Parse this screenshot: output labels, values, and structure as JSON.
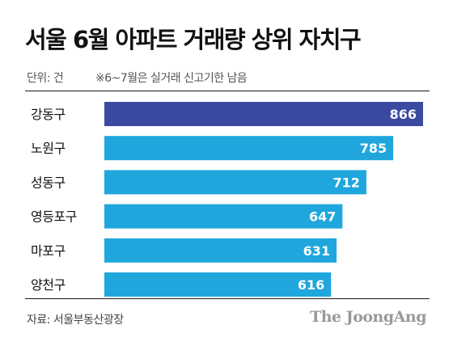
{
  "title": "서울 6월 아파트 거래량 상위 자치구",
  "unit_label": "단위: 건",
  "note": "※6~7월은 실거래 신고기한 남음",
  "source": "자료: 서울부동산광장",
  "brand": "The JoongAng",
  "colors": {
    "highlight_bar": "#3a4aa0",
    "bar": "#1fa7dd",
    "value_text": "#ffffff"
  },
  "chart_data": {
    "type": "bar",
    "orientation": "horizontal",
    "title": "서울 6월 아파트 거래량 상위 자치구",
    "categories": [
      "강동구",
      "노원구",
      "성동구",
      "영등포구",
      "마포구",
      "양천구"
    ],
    "values": [
      866,
      785,
      712,
      647,
      631,
      616
    ],
    "value_labels": [
      "866",
      "785",
      "712",
      "647",
      "631",
      "616"
    ],
    "highlight_index": 0,
    "xlabel": "",
    "ylabel": "",
    "unit": "건",
    "xlim": [
      0,
      866
    ],
    "grid": false,
    "legend": "none"
  }
}
